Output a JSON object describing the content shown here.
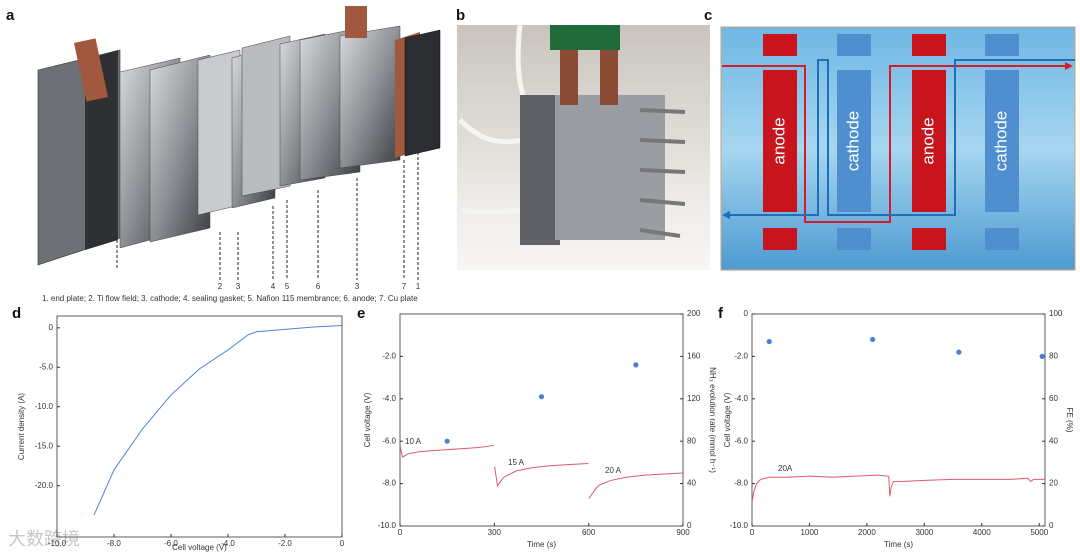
{
  "panel_a": {
    "label": "a",
    "parts": [
      "2",
      "3",
      "4",
      "5",
      "6",
      "3",
      "7",
      "1"
    ],
    "caption": "1. end plate; 2. Ti flow field; 3. cathode; 4. sealing gasket; 5. Nafion 115 membrance; 6. anode; 7. Cu plate"
  },
  "panel_b": {
    "label": "b"
  },
  "panel_c": {
    "label": "c",
    "electrodes": [
      "anode",
      "cathode",
      "anode",
      "cathode"
    ]
  },
  "watermark": "大数跨境",
  "chart_data": [
    {
      "type": "line",
      "panel": "d",
      "x_label": "Cell voltage (V)",
      "y_label": "Current density (A)",
      "xlim": [
        -10,
        0
      ],
      "ylim": [
        -26.5,
        1.5
      ],
      "xticks": [
        {
          "value": -10,
          "label": "-10.0"
        },
        {
          "value": -8,
          "label": "-8.0"
        },
        {
          "value": -6,
          "label": "-6.0"
        },
        {
          "value": -4,
          "label": "-4.0"
        },
        {
          "value": -2,
          "label": "-2.0"
        },
        0
      ],
      "yticks": [
        0,
        {
          "value": -5,
          "label": "-5.0"
        },
        {
          "value": -10,
          "label": "-10.0"
        },
        {
          "value": -15,
          "label": "-15.0"
        },
        {
          "value": -20,
          "label": "-20.0"
        }
      ],
      "series": [
        {
          "color": "#4a86d8",
          "marker": false,
          "x": [
            -8.7,
            -8,
            -7,
            -6,
            -5,
            -4,
            -3.3,
            -3,
            -2,
            -1,
            0
          ],
          "values": [
            -23.7,
            -18,
            -12.8,
            -8.5,
            -5.2,
            -2.8,
            -0.9,
            -0.5,
            -0.2,
            0.1,
            0.3
          ]
        }
      ]
    },
    {
      "type": "line",
      "panel": "e",
      "x_label": "Time (s)",
      "y_label": "Cell voltage (V)",
      "y2_label": "NH₃ evolution rate (mmol h⁻¹)",
      "xlim": [
        0,
        900
      ],
      "ylim": [
        -10,
        0
      ],
      "y2lim": [
        0,
        200
      ],
      "xticks": [
        0,
        300,
        600,
        900
      ],
      "yticks": [
        {
          "value": -2,
          "label": "-2.0"
        },
        {
          "value": -4,
          "label": "-4.0"
        },
        {
          "value": -6,
          "label": "-6.0"
        },
        {
          "value": -8,
          "label": "-8.0"
        },
        {
          "value": -10,
          "label": "-10.0"
        }
      ],
      "y2ticks": [
        0,
        40,
        80,
        120,
        160,
        200
      ],
      "annotations": [
        "10 A",
        "15 A",
        "20 A"
      ],
      "series": [
        {
          "color": "#e05a6a",
          "marker": false,
          "x": [
            0,
            8,
            25,
            60,
            100,
            150,
            200,
            250,
            299,
            299.5,
            301,
            310,
            330,
            370,
            420,
            480,
            540,
            599,
            599.5,
            601,
            610,
            630,
            670,
            720,
            780,
            840,
            900
          ],
          "values": [
            -6.2,
            -6.75,
            -6.6,
            -6.5,
            -6.45,
            -6.4,
            -6.35,
            -6.3,
            -6.2,
            null,
            -7.2,
            -8.1,
            -7.7,
            -7.4,
            -7.25,
            -7.15,
            -7.1,
            -7.05,
            null,
            -8.7,
            -8.5,
            -8.1,
            -7.85,
            -7.7,
            -7.6,
            -7.55,
            -7.5
          ]
        },
        {
          "color": "#4a7fd0",
          "marker": true,
          "axis": "y2",
          "x": [
            150,
            450,
            750
          ],
          "values": [
            80,
            122,
            152
          ]
        }
      ]
    },
    {
      "type": "line",
      "panel": "f",
      "x_label": "Time (s)",
      "y_label": "Cell voltage (V)",
      "y2_label": "FE (%)",
      "xlim": [
        0,
        5100
      ],
      "ylim": [
        -10,
        0
      ],
      "y2lim": [
        0,
        100
      ],
      "xticks": [
        0,
        1000,
        2000,
        3000,
        4000,
        5000
      ],
      "yticks": [
        0,
        {
          "value": -2,
          "label": "-2.0"
        },
        {
          "value": -4,
          "label": "-4.0"
        },
        {
          "value": -6,
          "label": "-6.0"
        },
        {
          "value": -8,
          "label": "-8.0"
        },
        {
          "value": -10,
          "label": "-10.0"
        }
      ],
      "y2ticks": [
        0,
        20,
        40,
        60,
        80,
        100
      ],
      "annotations": [
        "20A"
      ],
      "series": [
        {
          "color": "#e05a6a",
          "marker": false,
          "x": [
            0,
            30,
            80,
            150,
            300,
            600,
            1000,
            1400,
            1800,
            2200,
            2380,
            2400,
            2420,
            2460,
            2600,
            3000,
            3500,
            4000,
            4500,
            4800,
            4850,
            4900,
            5100
          ],
          "values": [
            -8.9,
            -8.4,
            -8.0,
            -7.8,
            -7.7,
            -7.7,
            -7.65,
            -7.7,
            -7.65,
            -7.6,
            -7.65,
            -8.6,
            -8.2,
            -7.9,
            -7.9,
            -7.85,
            -7.8,
            -7.8,
            -7.8,
            -7.75,
            -7.9,
            -7.8,
            -7.8
          ]
        },
        {
          "color": "#4a7fd0",
          "marker": true,
          "axis": "y2",
          "x": [
            300,
            2100,
            3600,
            5050
          ],
          "values": [
            87,
            88,
            82,
            80
          ]
        }
      ]
    }
  ]
}
